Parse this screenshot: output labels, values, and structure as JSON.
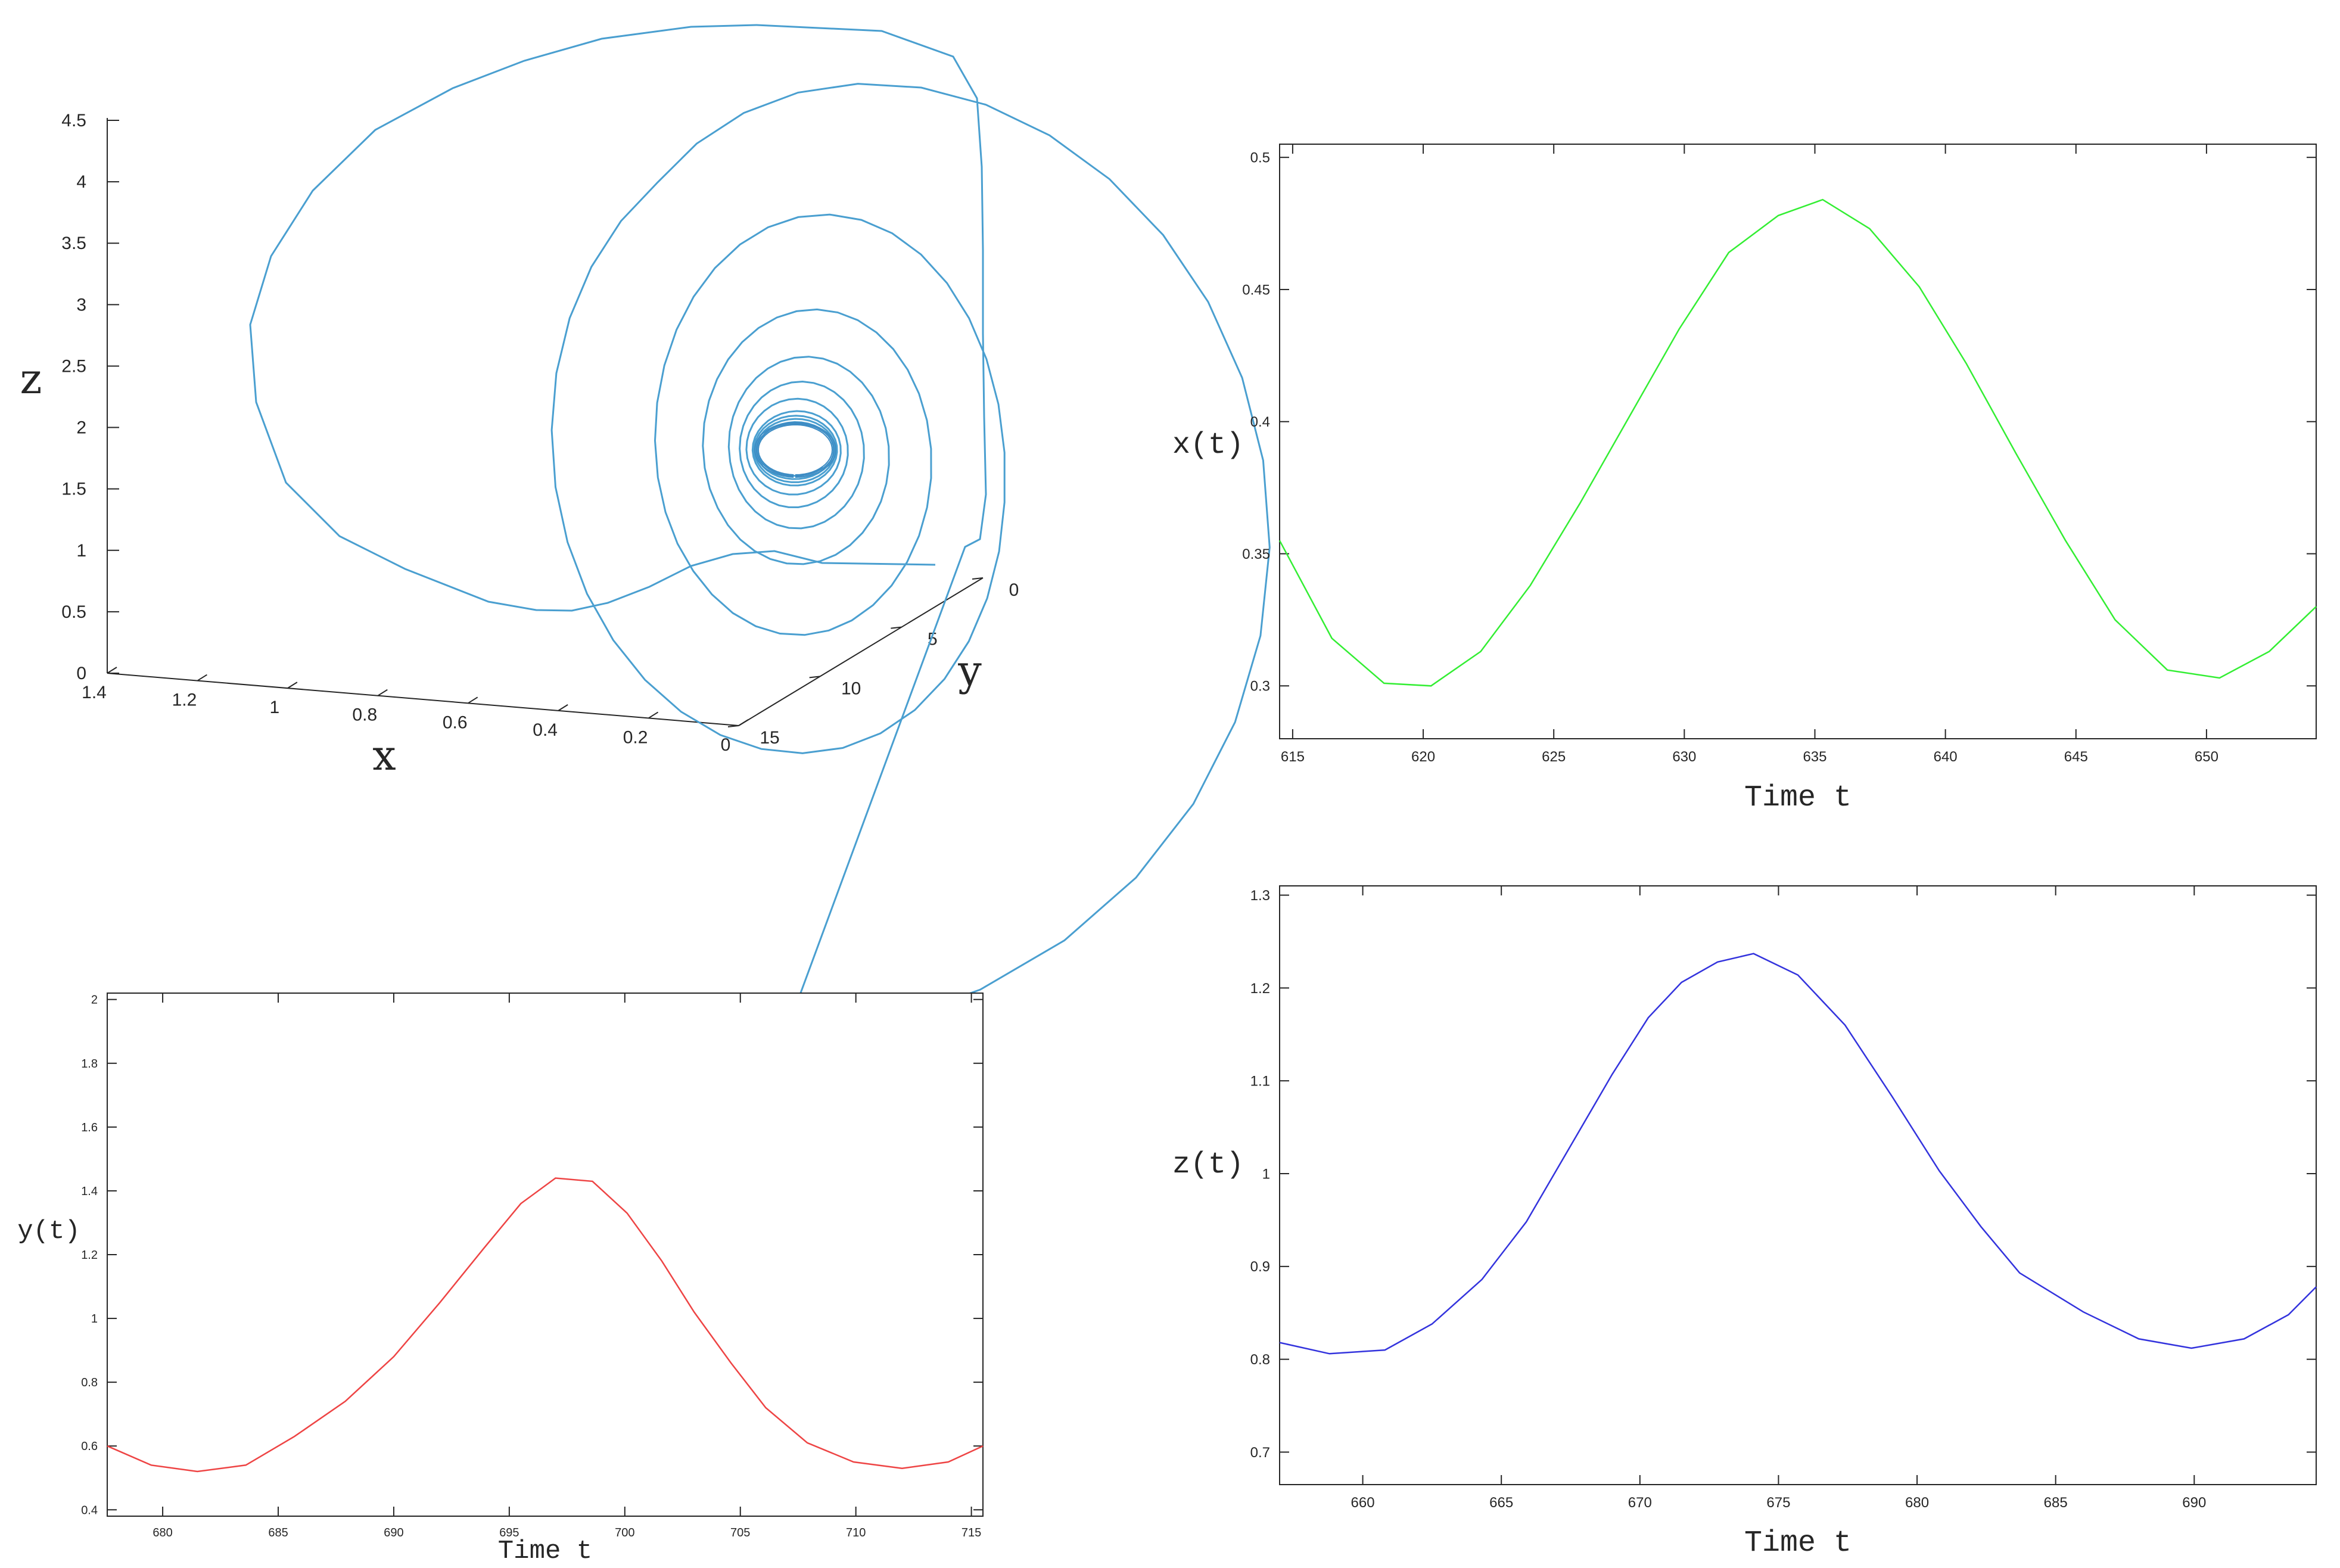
{
  "chart_data": [
    {
      "type": "line3d",
      "xlabel": "x",
      "ylabel": "y",
      "zlabel": "z",
      "xlim": [
        0,
        1.4
      ],
      "ylim": [
        0,
        15
      ],
      "zlim": [
        0,
        4.5
      ],
      "x_ticks": [
        "1.4",
        "1.2",
        "1",
        "0.8",
        "0.6",
        "0.4",
        "0.2",
        "0"
      ],
      "y_ticks": [
        "0",
        "5",
        "10",
        "15"
      ],
      "z_ticks": [
        "4.5",
        "4",
        "3.5",
        "3",
        "2.5",
        "2",
        "1.5",
        "1",
        "0.5",
        "0"
      ],
      "color": "#4a9fd0",
      "spiral": {
        "start": {
          "x": 0.2,
          "y": 0.5,
          "z": 1.08
        },
        "outer_loop": [
          {
            "x": 0.18,
            "y": 1.0,
            "z": 4.3
          },
          {
            "x": 0.25,
            "y": 5.0,
            "z": 4.5
          },
          {
            "x": 0.9,
            "y": 1.0,
            "z": 3.8
          },
          {
            "x": 1.3,
            "y": 1.0,
            "z": 2.8
          },
          {
            "x": 1.1,
            "y": 1.5,
            "z": 0.9
          },
          {
            "x": 0.6,
            "y": 1.0,
            "z": 0.4
          },
          {
            "x": 0.25,
            "y": 0.8,
            "z": 1.05
          }
        ],
        "converges_to": {
          "x": 0.4,
          "y": 1.4,
          "z": 1.0
        }
      }
    },
    {
      "type": "line",
      "ylabel": "x(t)",
      "xlabel": "Time t",
      "color": "#33ee33",
      "xlim": [
        614.5,
        654.2
      ],
      "ylim": [
        0.28,
        0.505
      ],
      "x_ticks": [
        615,
        620,
        625,
        630,
        635,
        640,
        645,
        650
      ],
      "y_ticks": [
        0.3,
        0.35,
        0.4,
        0.45,
        0.5
      ],
      "x": [
        614.5,
        616.5,
        618.5,
        620.3,
        622.2,
        624.1,
        626.0,
        627.9,
        629.8,
        631.7,
        633.6,
        635.3,
        637.1,
        639.0,
        640.8,
        642.7,
        644.6,
        646.5,
        648.5,
        650.5,
        652.4,
        654.2
      ],
      "y": [
        0.355,
        0.318,
        0.301,
        0.3,
        0.313,
        0.338,
        0.369,
        0.402,
        0.435,
        0.464,
        0.478,
        0.484,
        0.473,
        0.451,
        0.422,
        0.388,
        0.355,
        0.325,
        0.306,
        0.303,
        0.313,
        0.33
      ]
    },
    {
      "type": "line",
      "ylabel": "y(t)",
      "xlabel": "Time t",
      "color": "#ee4444",
      "xlim": [
        677.6,
        715.5
      ],
      "ylim": [
        0.38,
        2.02
      ],
      "x_ticks": [
        680,
        685,
        690,
        695,
        700,
        705,
        710,
        715
      ],
      "y_ticks": [
        0.4,
        0.6,
        0.8,
        1,
        1.2,
        1.4,
        1.6,
        1.8,
        2
      ],
      "x": [
        677.6,
        679.5,
        681.5,
        683.6,
        685.7,
        687.9,
        690.0,
        692.0,
        693.9,
        695.5,
        697.0,
        698.6,
        700.1,
        701.6,
        703.0,
        704.6,
        706.1,
        707.9,
        709.9,
        712.0,
        714.0,
        715.5
      ],
      "y": [
        0.6,
        0.54,
        0.52,
        0.54,
        0.63,
        0.74,
        0.88,
        1.05,
        1.22,
        1.36,
        1.44,
        1.43,
        1.33,
        1.18,
        1.02,
        0.86,
        0.72,
        0.61,
        0.55,
        0.53,
        0.55,
        0.6
      ]
    },
    {
      "type": "line",
      "ylabel": "z(t)",
      "xlabel": "Time t",
      "color": "#3333dd",
      "xlim": [
        657.0,
        694.4
      ],
      "ylim": [
        0.665,
        1.31
      ],
      "x_ticks": [
        660,
        665,
        670,
        675,
        680,
        685,
        690
      ],
      "y_ticks": [
        0.7,
        0.8,
        0.9,
        1,
        1.1,
        1.2,
        1.3
      ],
      "x": [
        657.0,
        658.8,
        660.8,
        662.5,
        664.3,
        665.9,
        667.5,
        669.0,
        670.3,
        671.5,
        672.8,
        674.1,
        675.7,
        677.4,
        679.1,
        680.8,
        682.3,
        683.7,
        686.0,
        688.0,
        689.9,
        691.8,
        693.4,
        694.4
      ],
      "y": [
        0.818,
        0.806,
        0.81,
        0.838,
        0.886,
        0.948,
        1.03,
        1.107,
        1.168,
        1.206,
        1.228,
        1.237,
        1.214,
        1.16,
        1.083,
        1.003,
        0.943,
        0.893,
        0.851,
        0.822,
        0.812,
        0.822,
        0.848,
        0.878
      ]
    }
  ]
}
